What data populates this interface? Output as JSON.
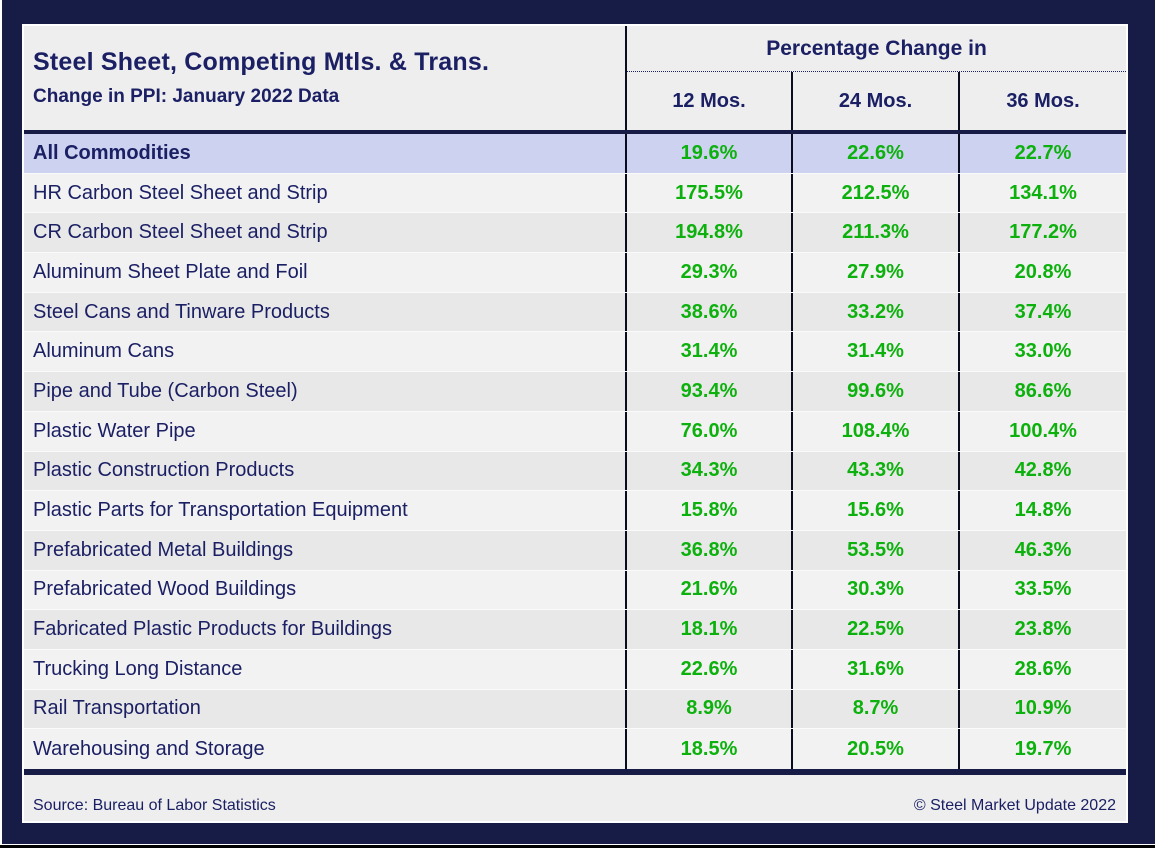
{
  "table": {
    "title": "Steel Sheet, Competing Mtls. & Trans.",
    "subtitle": "Change in PPI: January 2022 Data",
    "header_group": "Percentage Change in",
    "columns": [
      "12 Mos.",
      "24 Mos.",
      "36 Mos."
    ],
    "rows": [
      {
        "label": "All Commodities",
        "values": [
          "19.6%",
          "22.6%",
          "22.7%"
        ],
        "highlight": true
      },
      {
        "label": "HR Carbon Steel Sheet and Strip",
        "values": [
          "175.5%",
          "212.5%",
          "134.1%"
        ]
      },
      {
        "label": "CR Carbon Steel Sheet and Strip",
        "values": [
          "194.8%",
          "211.3%",
          "177.2%"
        ]
      },
      {
        "label": "Aluminum Sheet Plate and Foil",
        "values": [
          "29.3%",
          "27.9%",
          "20.8%"
        ]
      },
      {
        "label": "Steel Cans and Tinware Products",
        "values": [
          "38.6%",
          "33.2%",
          "37.4%"
        ]
      },
      {
        "label": "Aluminum Cans",
        "values": [
          "31.4%",
          "31.4%",
          "33.0%"
        ]
      },
      {
        "label": "Pipe and Tube (Carbon Steel)",
        "values": [
          "93.4%",
          "99.6%",
          "86.6%"
        ]
      },
      {
        "label": "Plastic Water Pipe",
        "values": [
          "76.0%",
          "108.4%",
          "100.4%"
        ]
      },
      {
        "label": "Plastic Construction Products",
        "values": [
          "34.3%",
          "43.3%",
          "42.8%"
        ]
      },
      {
        "label": "Plastic Parts for Transportation Equipment",
        "values": [
          "15.8%",
          "15.6%",
          "14.8%"
        ]
      },
      {
        "label": "Prefabricated Metal Buildings",
        "values": [
          "36.8%",
          "53.5%",
          "46.3%"
        ]
      },
      {
        "label": "Prefabricated Wood Buildings",
        "values": [
          "21.6%",
          "30.3%",
          "33.5%"
        ]
      },
      {
        "label": "Fabricated Plastic Products for Buildings",
        "values": [
          "18.1%",
          "22.5%",
          "23.8%"
        ]
      },
      {
        "label": "Trucking Long Distance",
        "values": [
          "22.6%",
          "31.6%",
          "28.6%"
        ]
      },
      {
        "label": "Rail Transportation",
        "values": [
          "8.9%",
          "8.7%",
          "10.9%"
        ]
      },
      {
        "label": "Warehousing and Storage",
        "values": [
          "18.5%",
          "20.5%",
          "19.7%"
        ]
      }
    ]
  },
  "footer": {
    "source": "Source: Bureau of Labor Statistics",
    "copyright": "© Steel Market Update 2022"
  },
  "colors": {
    "frame_navy": "#171c47",
    "text_navy": "#1b2064",
    "value_green": "#0db10d",
    "highlight_lavender": "#ccd2f0",
    "row_light": "#f3f2f2",
    "row_gray": "#e9e8e8",
    "cell_gray": "#efeeee"
  },
  "chart_data": {
    "type": "table",
    "title": "Steel Sheet, Competing Mtls. & Trans. — Change in PPI: January 2022 Data",
    "column_group": "Percentage Change in",
    "columns": [
      "12 Mos.",
      "24 Mos.",
      "36 Mos."
    ],
    "categories": [
      "All Commodities",
      "HR Carbon Steel Sheet and Strip",
      "CR Carbon Steel Sheet and Strip",
      "Aluminum Sheet Plate and Foil",
      "Steel Cans and Tinware Products",
      "Aluminum Cans",
      "Pipe and Tube (Carbon Steel)",
      "Plastic Water Pipe",
      "Plastic Construction Products",
      "Plastic Parts for Transportation Equipment",
      "Prefabricated Metal Buildings",
      "Prefabricated Wood Buildings",
      "Fabricated Plastic Products for Buildings",
      "Trucking Long Distance",
      "Rail Transportation",
      "Warehousing and Storage"
    ],
    "series": [
      {
        "name": "12 Mos.",
        "unit": "%",
        "values": [
          19.6,
          175.5,
          194.8,
          29.3,
          38.6,
          31.4,
          93.4,
          76.0,
          34.3,
          15.8,
          36.8,
          21.6,
          18.1,
          22.6,
          8.9,
          18.5
        ]
      },
      {
        "name": "24 Mos.",
        "unit": "%",
        "values": [
          22.6,
          212.5,
          211.3,
          27.9,
          33.2,
          31.4,
          99.6,
          108.4,
          43.3,
          15.6,
          53.5,
          30.3,
          22.5,
          31.6,
          8.7,
          20.5
        ]
      },
      {
        "name": "36 Mos.",
        "unit": "%",
        "values": [
          22.7,
          134.1,
          177.2,
          20.8,
          37.4,
          33.0,
          86.6,
          100.4,
          42.8,
          14.8,
          46.3,
          33.5,
          23.8,
          28.6,
          10.9,
          19.7
        ]
      }
    ],
    "source": "Source: Bureau of Labor Statistics",
    "credit": "© Steel Market Update 2022"
  }
}
